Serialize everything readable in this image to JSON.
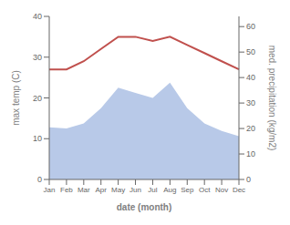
{
  "chart_data": {
    "type": "line",
    "x_label": "date (month)",
    "y_label": "max temp (C)",
    "y2_label": "med. precipitation (kg/m2)",
    "categories": [
      "Jan",
      "Feb",
      "Mar",
      "Apr",
      "May",
      "Jun",
      "Jul",
      "Aug",
      "Sep",
      "Oct",
      "Nov",
      "Dec"
    ],
    "series": [
      {
        "type": "area",
        "axis": "y2",
        "color": "#b8c9e8",
        "values": [
          20.5,
          20,
          22,
          28,
          36,
          34,
          32,
          38,
          28,
          22,
          19,
          17
        ]
      },
      {
        "type": "line",
        "color": "#c0504d",
        "values": [
          27,
          27,
          29,
          32,
          35,
          35,
          34,
          35,
          33,
          31,
          29,
          27
        ]
      }
    ],
    "ylim": [
      0,
      40
    ],
    "yticks": [
      0,
      10,
      20,
      30,
      40
    ],
    "y2lim": [
      0,
      64
    ],
    "y2ticks": [
      0,
      10,
      20,
      30,
      40,
      50,
      60
    ],
    "grid": false
  }
}
